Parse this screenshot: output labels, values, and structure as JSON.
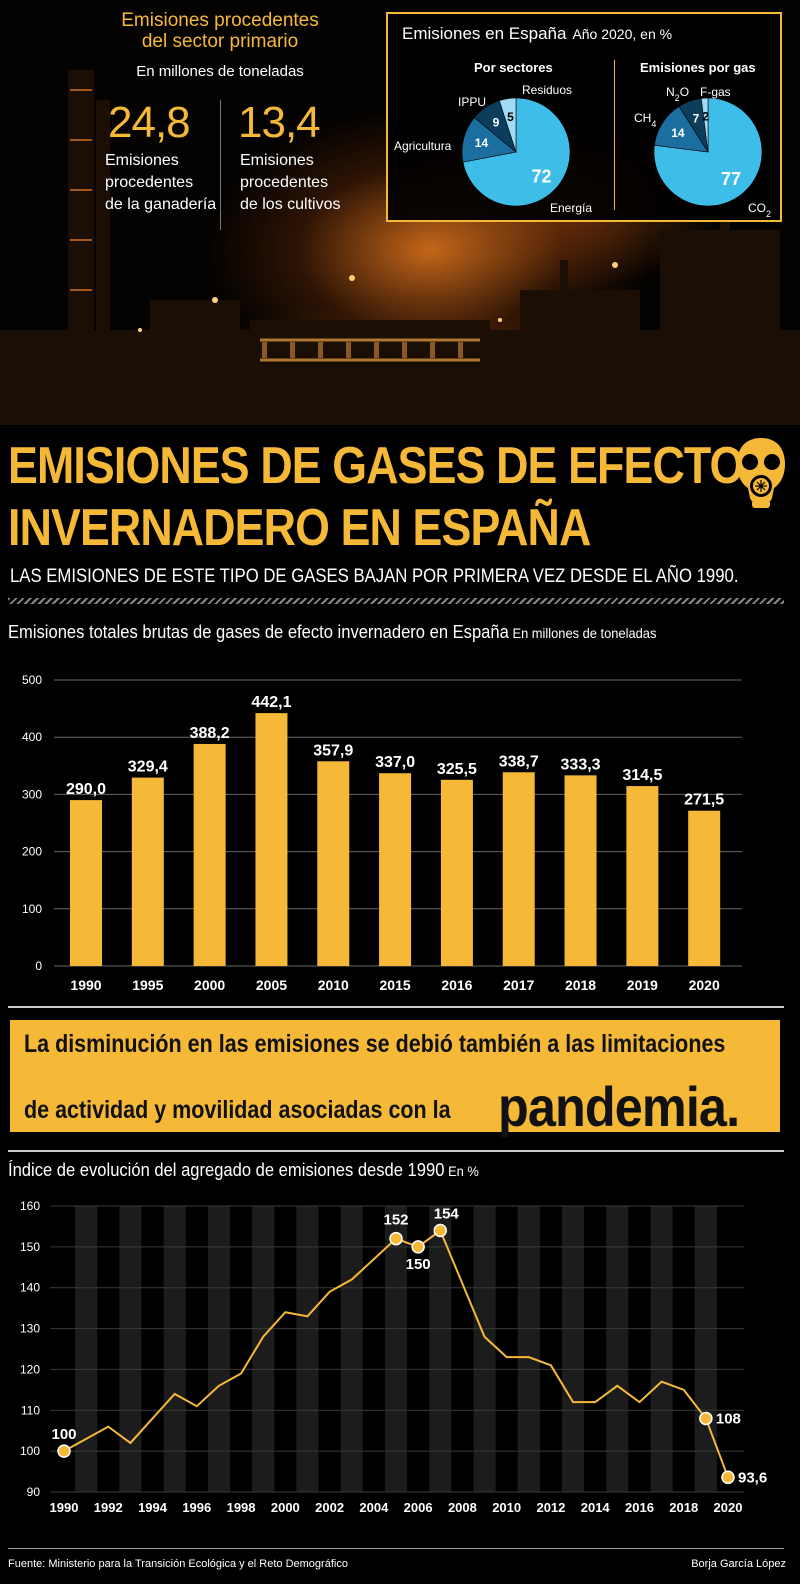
{
  "primary_sector": {
    "title_line1": "Emisiones procedentes",
    "title_line2": "del sector primario",
    "subtitle": "En millones de toneladas",
    "livestock_value": "24,8",
    "livestock_label": [
      "Emisiones",
      "procedentes",
      "de la ganadería"
    ],
    "crops_value": "13,4",
    "crops_label": [
      "Emisiones",
      "procedentes",
      "de los cultivos"
    ]
  },
  "pies_box": {
    "title": "Emisiones en España",
    "subtitle": "Año 2020, en %",
    "colors": {
      "big": "#3dbde8",
      "mid": "#1a6fa0",
      "dark": "#0c3d5c",
      "light": "#9fdcf3",
      "pale": "#d8f1fb"
    }
  },
  "chart_data": [
    {
      "type": "pie",
      "title": "Por sectores",
      "slices": [
        {
          "label": "Energía",
          "value": 72
        },
        {
          "label": "Agricultura",
          "value": 14
        },
        {
          "label": "IPPU",
          "value": 9
        },
        {
          "label": "Residuos",
          "value": 5
        }
      ]
    },
    {
      "type": "pie",
      "title": "Emisiones por gas",
      "slices": [
        {
          "label": "CO2",
          "value": 77
        },
        {
          "label": "CH4",
          "value": 14
        },
        {
          "label": "N2O",
          "value": 7
        },
        {
          "label": "F-gas",
          "value": 2
        }
      ]
    },
    {
      "type": "bar",
      "title": "Emisiones totales brutas de gases de efecto invernadero en España",
      "subtitle": "En millones de toneladas",
      "categories": [
        "1990",
        "1995",
        "2000",
        "2005",
        "2010",
        "2015",
        "2016",
        "2017",
        "2018",
        "2019",
        "2020"
      ],
      "values": [
        290.0,
        329.4,
        388.2,
        442.1,
        357.9,
        337.0,
        325.5,
        338.7,
        333.3,
        314.5,
        271.5
      ],
      "value_labels": [
        "290,0",
        "329,4",
        "388,2",
        "442,1",
        "357,9",
        "337,0",
        "325,5",
        "338,7",
        "333,3",
        "314,5",
        "271,5"
      ],
      "ylim": [
        0,
        500
      ],
      "yticks": [
        0,
        100,
        200,
        300,
        400,
        500
      ],
      "grid": true,
      "color": "#f5b937"
    },
    {
      "type": "line",
      "title": "Índice de evolución del agregado de emisiones desde 1990",
      "subtitle": "En %",
      "x": [
        1990,
        1991,
        1992,
        1993,
        1994,
        1995,
        1996,
        1997,
        1998,
        1999,
        2000,
        2001,
        2002,
        2003,
        2004,
        2005,
        2006,
        2007,
        2008,
        2009,
        2010,
        2011,
        2012,
        2013,
        2014,
        2015,
        2016,
        2017,
        2018,
        2019,
        2020
      ],
      "y": [
        100,
        103,
        106,
        102,
        108,
        114,
        111,
        116,
        119,
        128,
        134,
        133,
        139,
        142,
        147,
        152,
        150,
        154,
        141,
        128,
        123,
        123,
        121,
        112,
        112,
        116,
        112,
        117,
        115,
        108,
        93.6
      ],
      "xticks": [
        "1990",
        "1992",
        "1994",
        "1996",
        "1998",
        "2000",
        "2002",
        "2004",
        "2006",
        "2008",
        "2010",
        "2012",
        "2014",
        "2016",
        "2018",
        "2020"
      ],
      "ylim": [
        90,
        160
      ],
      "yticks": [
        90,
        100,
        110,
        120,
        130,
        140,
        150,
        160
      ],
      "highlights": [
        {
          "x": 1990,
          "label": "100"
        },
        {
          "x": 2005,
          "label": "152"
        },
        {
          "x": 2006,
          "label": "150"
        },
        {
          "x": 2007,
          "label": "154"
        },
        {
          "x": 2019,
          "label": "108"
        },
        {
          "x": 2020,
          "label": "93,6"
        }
      ],
      "color": "#f5b937"
    }
  ],
  "headline": {
    "line1": "EMISIONES DE GASES DE EFECTO",
    "line2": "INVERNADERO EN ESPAÑA",
    "subtitle": "LAS EMISIONES DE ESTE TIPO DE GASES BAJAN POR PRIMERA VEZ DESDE EL AÑO 1990."
  },
  "callout": {
    "line1": "La disminución en las emisiones se debió también a las limitaciones",
    "line2": "de actividad y movilidad asociadas con la",
    "emphasis": "pandemia."
  },
  "footer": {
    "source": "Fuente: Ministerio para la Transición Ecológica y el Reto Demográfico",
    "author": "Borja García López"
  }
}
